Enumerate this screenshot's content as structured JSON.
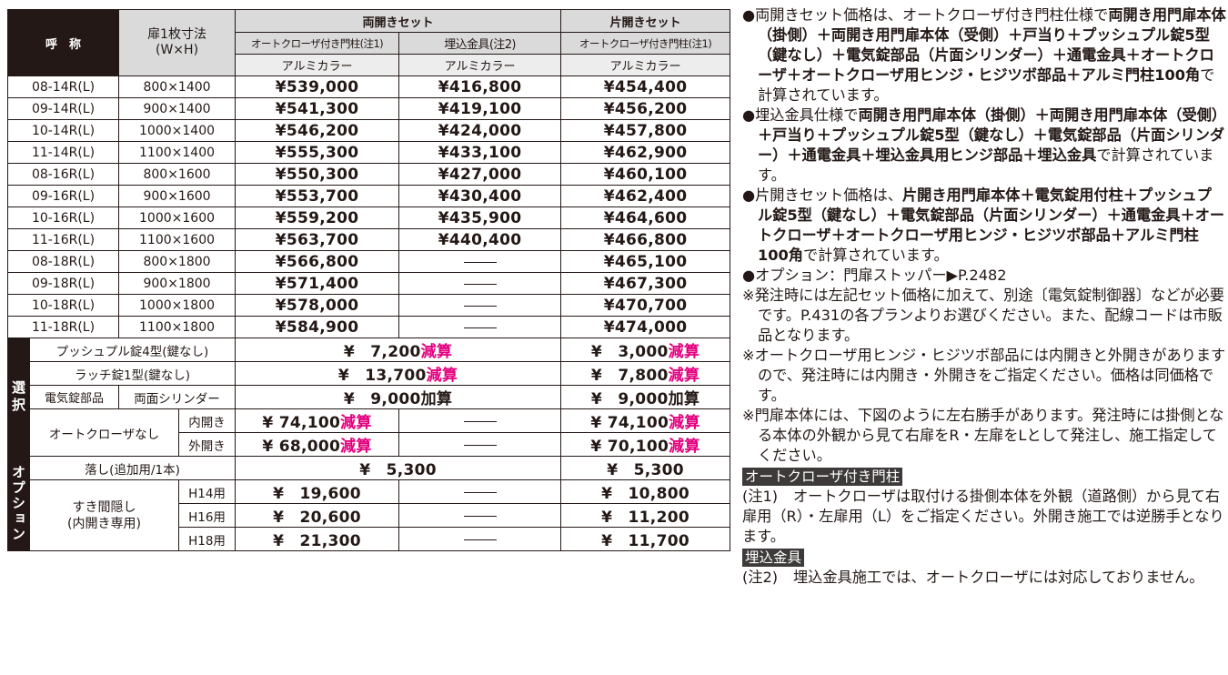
{
  "table": {
    "header": {
      "name": "呼　称",
      "size": "扉1枚寸法",
      "size_unit": "(W×H)",
      "double_set": "両開きセット",
      "single_set": "片開きセット",
      "col_autocloser": "オートクローザ付き門柱(注1)",
      "col_embedded": "埋込金具(注2)",
      "col_single_autocloser": "オートクローザ付き門柱(注1)",
      "color_label": "アルミカラー"
    },
    "rows": [
      {
        "model": "08-14R(L)",
        "size": "800×1400",
        "a": "¥539,000",
        "b": "¥416,800",
        "c": "¥454,400"
      },
      {
        "model": "09-14R(L)",
        "size": "900×1400",
        "a": "¥541,300",
        "b": "¥419,100",
        "c": "¥456,200"
      },
      {
        "model": "10-14R(L)",
        "size": "1000×1400",
        "a": "¥546,200",
        "b": "¥424,000",
        "c": "¥457,800"
      },
      {
        "model": "11-14R(L)",
        "size": "1100×1400",
        "a": "¥555,300",
        "b": "¥433,100",
        "c": "¥462,900"
      },
      {
        "model": "08-16R(L)",
        "size": "800×1600",
        "a": "¥550,300",
        "b": "¥427,000",
        "c": "¥460,100"
      },
      {
        "model": "09-16R(L)",
        "size": "900×1600",
        "a": "¥553,700",
        "b": "¥430,400",
        "c": "¥462,400"
      },
      {
        "model": "10-16R(L)",
        "size": "1000×1600",
        "a": "¥559,200",
        "b": "¥435,900",
        "c": "¥464,600"
      },
      {
        "model": "11-16R(L)",
        "size": "1100×1600",
        "a": "¥563,700",
        "b": "¥440,400",
        "c": "¥466,800"
      },
      {
        "model": "08-18R(L)",
        "size": "800×1800",
        "a": "¥566,800",
        "b": "",
        "c": "¥465,100"
      },
      {
        "model": "09-18R(L)",
        "size": "900×1800",
        "a": "¥571,400",
        "b": "",
        "c": "¥467,300"
      },
      {
        "model": "10-18R(L)",
        "size": "1000×1800",
        "a": "¥578,000",
        "b": "",
        "c": "¥470,700"
      },
      {
        "model": "11-18R(L)",
        "size": "1100×1800",
        "a": "¥584,900",
        "b": "",
        "c": "¥474,000"
      }
    ],
    "selection": {
      "side_label": "選択",
      "push_lock": {
        "label": "プッシュプル錠4型(鍵なし)",
        "double": "¥　7,200",
        "double_suffix": "減算",
        "single": "¥　3,000",
        "single_suffix": "減算"
      },
      "latch_lock": {
        "label": "ラッチ錠1型(鍵なし)",
        "double": "¥　13,700",
        "double_suffix": "減算",
        "single": "¥　7,800",
        "single_suffix": "減算"
      },
      "electric": {
        "label1": "電気錠部品",
        "label2": "両面シリンダー",
        "double": "¥　9,000",
        "double_suffix": "加算",
        "single": "¥　9,000",
        "single_suffix": "加算"
      },
      "no_closer": {
        "label": "オートクローザなし",
        "inner": {
          "label": "内開き",
          "a": "¥ 74,100",
          "a_suffix": "減算",
          "c": "¥ 74,100",
          "c_suffix": "減算"
        },
        "outer": {
          "label": "外開き",
          "a": "¥ 68,000",
          "a_suffix": "減算",
          "c": "¥ 70,100",
          "c_suffix": "減算"
        }
      }
    },
    "option": {
      "side_label": "オプション",
      "drop": {
        "label": "落し(追加用/1本)",
        "double": "¥　5,300",
        "single": "¥　5,300"
      },
      "gap": {
        "label1": "すき間隠し",
        "label2": "(内開き専用)",
        "items": [
          {
            "label": "H14用",
            "a": "¥　19,600",
            "c": "¥　10,800"
          },
          {
            "label": "H16用",
            "a": "¥　20,600",
            "c": "¥　11,200"
          },
          {
            "label": "H18用",
            "a": "¥　21,300",
            "c": "¥　11,700"
          }
        ]
      }
    }
  },
  "notes": {
    "n1_a": "●両開きセット価格は、オートクローザ付き門柱仕様で",
    "n1_b": "両開き用門扉本体（掛側）＋両開き用門扉本体（受側）＋戸当り＋プッシュプル錠5型（鍵なし）＋電気錠部品（片面シリンダー）＋通電金具＋オートクローザ＋オートクローザ用ヒンジ・ヒジツボ部品＋アルミ門柱100角",
    "n1_c": "で計算されています。",
    "n2_a": "●埋込金具仕様で",
    "n2_b": "両開き用門扉本体（掛側）＋両開き用門扉本体（受側）＋戸当り＋プッシュプル錠5型（鍵なし）＋電気錠部品（片面シリンダー）＋通電金具＋埋込金具用ヒンジ部品＋埋込金具",
    "n2_c": "で計算されています。",
    "n3_a": "●片開きセット価格は、",
    "n3_b": "片開き用門扉本体＋電気錠用付柱＋プッシュプル錠5型（鍵なし）＋電気錠部品（片面シリンダー）＋通電金具＋オートクローザ＋オートクローザ用ヒンジ・ヒジツボ部品＋アルミ門柱100角",
    "n3_c": "で計算されています。",
    "n4": "●オプション：門扉ストッパー▶P.2482",
    "n5": "※発注時には左記セット価格に加えて、別途〔電気錠制御器〕などが必要です。P.431の各プランよりお選びください。また、配線コードは市販品となります。",
    "n6": "※オートクローザ用ヒンジ・ヒジツボ部品には内開きと外開きがありますので、発注時には内開き・外開きをご指定ください。価格は同価格です。",
    "n7": "※門扉本体には、下図のように左右勝手があります。発注時には掛側となる本体の外観から見て右扉をR・左扉をLとして発注し、施工指定してください。",
    "heading1": "オートクローザ付き門柱",
    "sub1_tag": "(注1)",
    "sub1": "オートクローザは取付ける掛側本体を外観（道路側）から見て右扉用（R）・左扉用（L）をご指定ください。外開き施工では逆勝手となります。",
    "heading2": "埋込金具",
    "sub2_tag": "(注2)",
    "sub2": "埋込金具施工では、オートクローザには対応しておりません。"
  },
  "colors": {
    "accent_magenta": "#e4007f",
    "header_gray": "#dadadb",
    "black": "#231815"
  }
}
